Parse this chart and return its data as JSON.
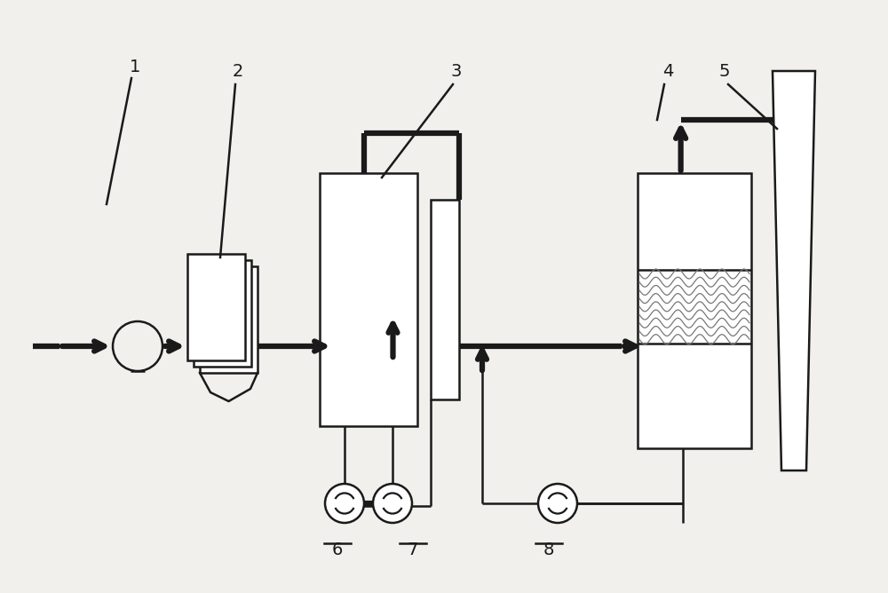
{
  "bg_color": "#f2f0ed",
  "line_color": "#1a1a1a",
  "thick_lw": 4.5,
  "thin_lw": 1.8,
  "fig_width": 10.0,
  "fig_height": 6.68,
  "dpi": 100
}
